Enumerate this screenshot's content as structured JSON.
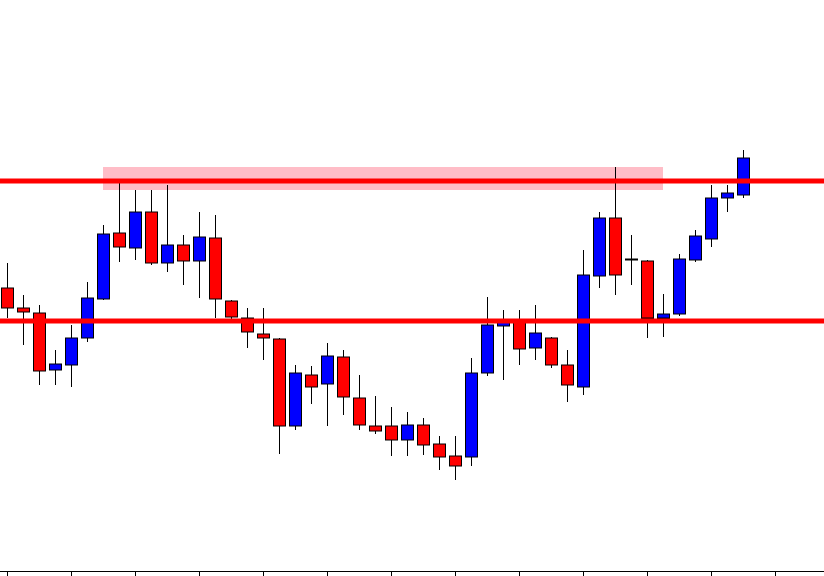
{
  "chart_data": {
    "type": "candlestick",
    "up_color": "#0000ff",
    "down_color": "#ff0000",
    "level_color": "#ff0000",
    "zone_color": "#ffb6c1",
    "ylim": [
      0,
      576
    ],
    "open": [
      288,
      268,
      263,
      206,
      211,
      238,
      277,
      343,
      328,
      364,
      313,
      331,
      315,
      338,
      275,
      258,
      242,
      237,
      150,
      201,
      192,
      219,
      178,
      150,
      150,
      136,
      151,
      132,
      120,
      119,
      203,
      250,
      253,
      228,
      238,
      211,
      189,
      300,
      358,
      317,
      315,
      258,
      262,
      316,
      337,
      378,
      381
    ],
    "high": [
      313,
      281,
      271,
      226,
      251,
      294,
      351,
      393,
      386,
      386,
      391,
      341,
      364,
      361,
      276,
      268,
      268,
      238,
      211,
      210,
      233,
      226,
      201,
      180,
      169,
      164,
      158,
      140,
      140,
      218,
      279,
      266,
      266,
      271,
      239,
      226,
      326,
      364,
      409,
      341,
      316,
      282,
      322,
      346,
      391,
      391,
      426
    ],
    "low": [
      258,
      231,
      191,
      191,
      189,
      234,
      276,
      314,
      316,
      311,
      304,
      291,
      278,
      258,
      256,
      228,
      216,
      122,
      146,
      172,
      150,
      161,
      146,
      142,
      120,
      120,
      121,
      106,
      96,
      110,
      200,
      196,
      211,
      216,
      208,
      174,
      181,
      288,
      281,
      291,
      238,
      239,
      260,
      314,
      329,
      364,
      378
    ],
    "close": [
      268,
      264,
      205,
      212,
      238,
      278,
      342,
      329,
      364,
      313,
      331,
      315,
      339,
      277,
      259,
      244,
      238,
      150,
      203,
      189,
      220,
      179,
      151,
      145,
      136,
      151,
      131,
      119,
      110,
      203,
      251,
      253,
      227,
      243,
      211,
      191,
      301,
      358,
      301,
      316,
      258,
      262,
      317,
      340,
      378,
      383,
      418
    ],
    "levels": [
      395,
      255
    ],
    "zone": [
      386,
      409
    ]
  }
}
